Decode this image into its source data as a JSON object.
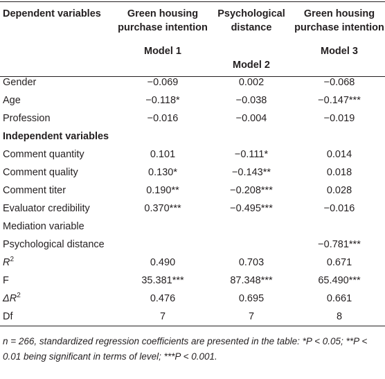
{
  "table": {
    "headers": [
      {
        "title": "Dependent variables",
        "model": ""
      },
      {
        "title": "Green housing purchase intention",
        "model": "Model 1"
      },
      {
        "title": "Psychological distance",
        "model": "Model 2"
      },
      {
        "title": "Green housing purchase intention",
        "model": "Model 3"
      }
    ],
    "rows": [
      {
        "type": "data",
        "label": "Gender",
        "values": [
          "−0.069",
          "0.002",
          "−0.068"
        ]
      },
      {
        "type": "data",
        "label": "Age",
        "values": [
          "−0.118*",
          "−0.038",
          "−0.147***"
        ]
      },
      {
        "type": "data",
        "label": "Profession",
        "values": [
          "−0.016",
          "−0.004",
          "−0.019"
        ]
      },
      {
        "type": "section",
        "label": "Independent variables",
        "values": [
          "",
          "",
          ""
        ]
      },
      {
        "type": "data",
        "label": "Comment quantity",
        "values": [
          "0.101",
          "−0.111*",
          "0.014"
        ]
      },
      {
        "type": "data",
        "label": "Comment quality",
        "values": [
          "0.130*",
          "−0.143**",
          "0.018"
        ]
      },
      {
        "type": "data",
        "label": "Comment titer",
        "values": [
          "0.190**",
          "−0.208***",
          "0.028"
        ]
      },
      {
        "type": "data",
        "label": "Evaluator credibility",
        "values": [
          "0.370***",
          "−0.495***",
          "−0.016"
        ]
      },
      {
        "type": "data",
        "label": "Mediation variable",
        "values": [
          "",
          "",
          ""
        ]
      },
      {
        "type": "data",
        "label": "Psychological distance",
        "values": [
          "",
          "",
          "−0.781***"
        ]
      },
      {
        "type": "data",
        "label": "R",
        "label_sup": "2",
        "values": [
          "0.490",
          "0.703",
          "0.671"
        ]
      },
      {
        "type": "data",
        "label": "F",
        "values": [
          "35.381***",
          "87.348***",
          "65.490***"
        ]
      },
      {
        "type": "data",
        "label": "ΔR",
        "label_sup": "2",
        "values": [
          "0.476",
          "0.695",
          "0.661"
        ]
      },
      {
        "type": "data",
        "label": "Df",
        "values": [
          "7",
          "7",
          "8"
        ]
      }
    ]
  },
  "footnote": "n = 266, standardized regression coefficients are presented in the table: *P < 0.05; **P < 0.01 being significant in terms of level; ***P < 0.001."
}
